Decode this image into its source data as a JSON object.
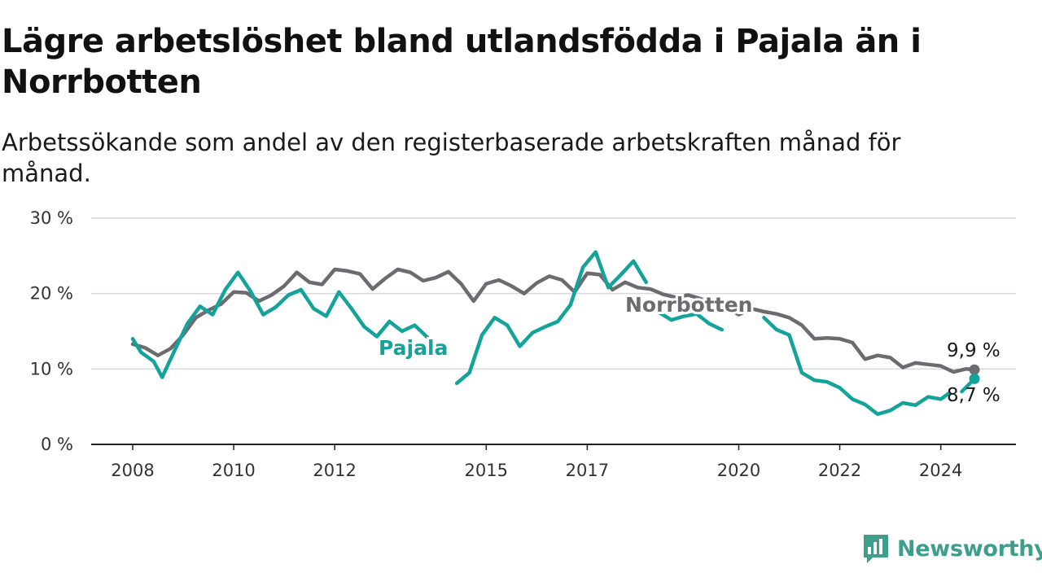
{
  "title": "Lägre arbetslöshet bland utlandsfödda i Pajala än i Norrbotten",
  "subtitle": "Arbetssökande som andel av den registerbaserade arbetskraften månad för månad.",
  "brand": "Newsworthy",
  "colors": {
    "pajala": "#14a39a",
    "norrbotten": "#6c6c70",
    "grid": "#d9d9d9",
    "axis": "#222222",
    "brand": "#3d9e8c"
  },
  "chart_data": {
    "type": "line",
    "title": "Lägre arbetslöshet bland utlandsfödda i Pajala än i Norrbotten",
    "subtitle": "Arbetssökande som andel av den registerbaserade arbetskraften månad för månad.",
    "xlabel": "",
    "ylabel": "",
    "ylim": [
      0,
      30
    ],
    "xlim": [
      "2008-01",
      "2024-09"
    ],
    "y_ticks": [
      0,
      10,
      20,
      30
    ],
    "y_tick_labels": [
      "0 %",
      "10 %",
      "20 %",
      "30 %"
    ],
    "x_ticks": [
      "2008-01",
      "2010-01",
      "2012-01",
      "2015-01",
      "2017-01",
      "2020-01",
      "2022-01",
      "2024-01"
    ],
    "x_tick_labels": [
      "2008",
      "2010",
      "2012",
      "2015",
      "2017",
      "2020",
      "2022",
      "2024"
    ],
    "grid": "horizontal",
    "series": [
      {
        "name": "Norrbotten",
        "color": "#6c6c70",
        "end_label": "9,9 %",
        "points": [
          [
            "2008-01",
            13.3
          ],
          [
            "2008-04",
            12.8
          ],
          [
            "2008-07",
            11.8
          ],
          [
            "2008-10",
            12.7
          ],
          [
            "2009-01",
            14.5
          ],
          [
            "2009-04",
            16.8
          ],
          [
            "2009-07",
            17.8
          ],
          [
            "2009-10",
            18.6
          ],
          [
            "2010-01",
            20.2
          ],
          [
            "2010-04",
            20.1
          ],
          [
            "2010-07",
            19.0
          ],
          [
            "2010-10",
            19.8
          ],
          [
            "2011-01",
            21.0
          ],
          [
            "2011-04",
            22.8
          ],
          [
            "2011-07",
            21.5
          ],
          [
            "2011-10",
            21.2
          ],
          [
            "2012-01",
            23.2
          ],
          [
            "2012-04",
            23.0
          ],
          [
            "2012-07",
            22.6
          ],
          [
            "2012-10",
            20.6
          ],
          [
            "2013-01",
            22.0
          ],
          [
            "2013-04",
            23.2
          ],
          [
            "2013-07",
            22.8
          ],
          [
            "2013-10",
            21.7
          ],
          [
            "2014-01",
            22.1
          ],
          [
            "2014-04",
            22.9
          ],
          [
            "2014-07",
            21.3
          ],
          [
            "2014-10",
            19.0
          ],
          [
            "2015-01",
            21.3
          ],
          [
            "2015-04",
            21.8
          ],
          [
            "2015-07",
            21.0
          ],
          [
            "2015-10",
            20.0
          ],
          [
            "2016-01",
            21.4
          ],
          [
            "2016-04",
            22.3
          ],
          [
            "2016-07",
            21.8
          ],
          [
            "2016-10",
            20.2
          ],
          [
            "2017-01",
            22.7
          ],
          [
            "2017-04",
            22.5
          ],
          [
            "2017-07",
            20.5
          ],
          [
            "2017-10",
            21.5
          ],
          [
            "2018-01",
            20.8
          ],
          [
            "2018-04",
            20.6
          ],
          [
            "2018-07",
            19.9
          ],
          [
            "2018-10",
            19.5
          ],
          [
            "2019-01",
            19.8
          ],
          [
            "2019-04",
            19.3
          ],
          [
            "2019-07",
            18.6
          ],
          [
            "2019-10",
            18.2
          ],
          [
            "2020-01",
            17.2
          ],
          [
            "2020-04",
            18.0
          ],
          [
            "2020-07",
            17.6
          ],
          [
            "2020-10",
            17.3
          ],
          [
            "2021-01",
            16.8
          ],
          [
            "2021-04",
            15.8
          ],
          [
            "2021-07",
            14.0
          ],
          [
            "2021-10",
            14.1
          ],
          [
            "2022-01",
            14.0
          ],
          [
            "2022-04",
            13.5
          ],
          [
            "2022-07",
            11.3
          ],
          [
            "2022-10",
            11.8
          ],
          [
            "2023-01",
            11.5
          ],
          [
            "2023-04",
            10.2
          ],
          [
            "2023-07",
            10.8
          ],
          [
            "2023-10",
            10.6
          ],
          [
            "2024-01",
            10.4
          ],
          [
            "2024-04",
            9.6
          ],
          [
            "2024-07",
            10.0
          ],
          [
            "2024-09",
            9.9
          ]
        ]
      },
      {
        "name": "Pajala",
        "color": "#14a39a",
        "end_label": "8,7 %",
        "points": [
          [
            "2008-01",
            14.0
          ],
          [
            "2008-03",
            12.2
          ],
          [
            "2008-06",
            11.0
          ],
          [
            "2008-08",
            8.9
          ],
          [
            "2008-11",
            12.5
          ],
          [
            "2009-02",
            16.0
          ],
          [
            "2009-05",
            18.3
          ],
          [
            "2009-08",
            17.2
          ],
          [
            "2009-11",
            20.5
          ],
          [
            "2010-02",
            22.8
          ],
          [
            "2010-05",
            20.3
          ],
          [
            "2010-08",
            17.2
          ],
          [
            "2010-11",
            18.2
          ],
          [
            "2011-02",
            19.8
          ],
          [
            "2011-05",
            20.5
          ],
          [
            "2011-08",
            18.0
          ],
          [
            "2011-11",
            17.0
          ],
          [
            "2012-02",
            20.2
          ],
          [
            "2012-05",
            18.0
          ],
          [
            "2012-08",
            15.6
          ],
          [
            "2012-11",
            14.3
          ],
          [
            "2013-02",
            16.3
          ],
          [
            "2013-05",
            15.0
          ],
          [
            "2013-08",
            15.8
          ],
          [
            "2013-11",
            14.2
          ],
          null,
          [
            "2014-06",
            8.1
          ],
          [
            "2014-09",
            9.5
          ],
          [
            "2014-12",
            14.5
          ],
          [
            "2015-03",
            16.8
          ],
          [
            "2015-06",
            15.8
          ],
          [
            "2015-09",
            13.0
          ],
          [
            "2015-12",
            14.8
          ],
          [
            "2016-03",
            15.6
          ],
          [
            "2016-06",
            16.3
          ],
          [
            "2016-09",
            18.5
          ],
          [
            "2016-12",
            23.5
          ],
          [
            "2017-03",
            25.5
          ],
          [
            "2017-06",
            20.8
          ],
          [
            "2017-09",
            22.5
          ],
          [
            "2017-12",
            24.3
          ],
          [
            "2018-03",
            21.5
          ],
          null,
          [
            "2018-06",
            17.5
          ],
          [
            "2018-09",
            16.5
          ],
          [
            "2018-12",
            17.0
          ],
          [
            "2019-03",
            17.3
          ],
          [
            "2019-06",
            16.0
          ],
          [
            "2019-09",
            15.2
          ],
          null,
          [
            "2020-07",
            16.8
          ],
          [
            "2020-10",
            15.2
          ],
          [
            "2021-01",
            14.5
          ],
          [
            "2021-04",
            9.5
          ],
          [
            "2021-07",
            8.5
          ],
          [
            "2021-10",
            8.3
          ],
          [
            "2022-01",
            7.5
          ],
          [
            "2022-04",
            6.0
          ],
          [
            "2022-07",
            5.3
          ],
          [
            "2022-10",
            4.0
          ],
          [
            "2023-01",
            4.5
          ],
          [
            "2023-04",
            5.5
          ],
          [
            "2023-07",
            5.2
          ],
          [
            "2023-10",
            6.3
          ],
          [
            "2024-01",
            6.0
          ],
          [
            "2024-03",
            6.8
          ],
          null,
          [
            "2024-06",
            7.0
          ],
          [
            "2024-09",
            8.7
          ]
        ]
      }
    ]
  }
}
